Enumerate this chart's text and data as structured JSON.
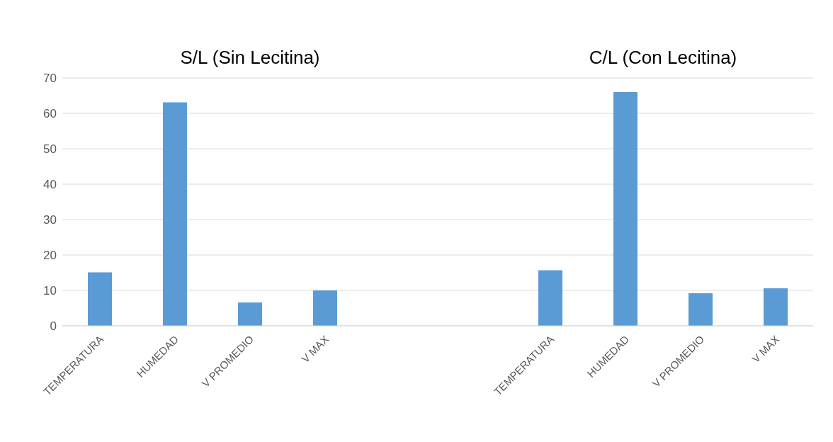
{
  "chart_data": {
    "type": "bar",
    "annotations": [
      "S/L (Sin Lecitina)",
      "C/L (Con Lecitina)"
    ],
    "categories": [
      "TEMPERATURA",
      "HUMEDAD",
      "V PROMEDIO",
      "V MAX",
      null,
      null,
      "TEMPERATURA",
      "HUMEDAD",
      "V PROMEDIO",
      "V MAX"
    ],
    "values": [
      15.1,
      63.1,
      6.6,
      10,
      null,
      null,
      15.7,
      66,
      9.2,
      10.6
    ],
    "color": "#5b9bd5",
    "ylim": [
      0,
      70
    ],
    "yticks": [
      0,
      10,
      20,
      30,
      40,
      50,
      60,
      70
    ],
    "grid": "y",
    "legend": false
  }
}
